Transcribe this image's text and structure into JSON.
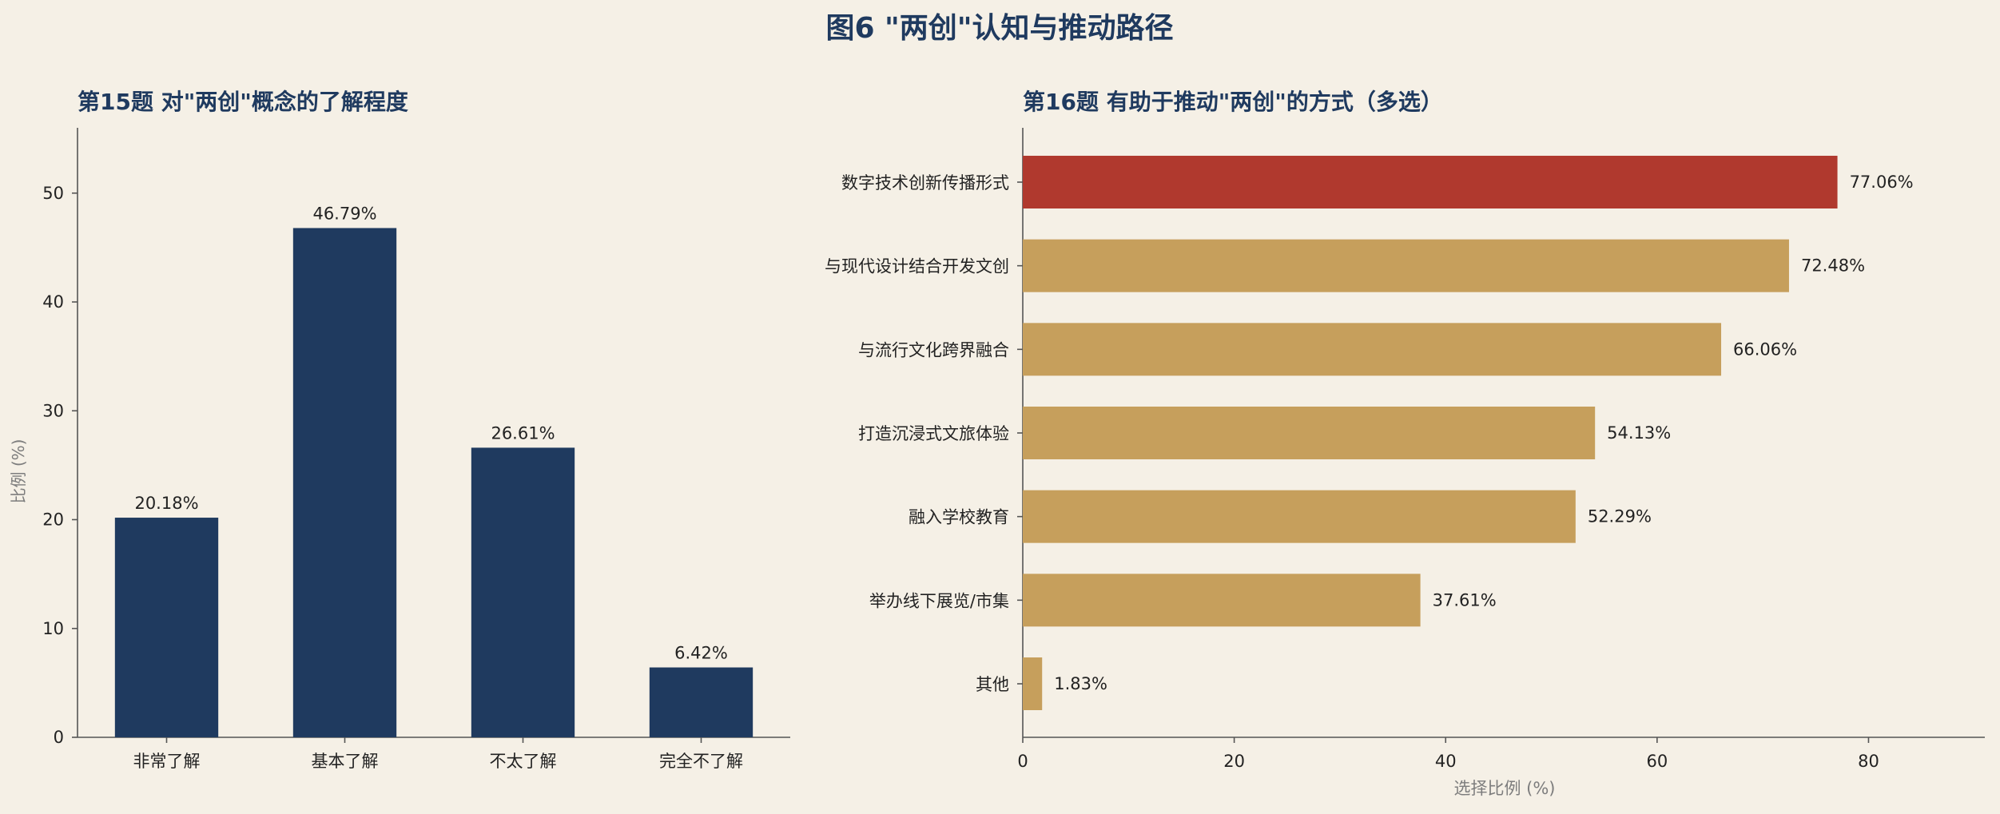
{
  "figure": {
    "title": "图6 \"两创\"认知与推动路径"
  },
  "chart_data": [
    {
      "type": "bar",
      "orientation": "vertical",
      "title": "第15题 对\"两创\"概念的了解程度",
      "xlabel": "",
      "ylabel": "比例 (%)",
      "categories": [
        "非常了解",
        "基本了解",
        "不太了解",
        "完全不了解"
      ],
      "values": [
        20.18,
        46.79,
        26.61,
        6.42
      ],
      "value_labels": [
        "20.18%",
        "46.79%",
        "26.61%",
        "6.42%"
      ],
      "ylim": [
        0,
        56
      ],
      "yticks": [
        0,
        10,
        20,
        30,
        40,
        50
      ],
      "colors": {
        "bar": "#1f3a5f"
      },
      "grid": false
    },
    {
      "type": "bar",
      "orientation": "horizontal",
      "title": "第16题 有助于推动\"两创\"的方式（多选）",
      "xlabel": "选择比例 (%)",
      "ylabel": "",
      "categories": [
        "数字技术创新传播形式",
        "与现代设计结合开发文创",
        "与流行文化跨界融合",
        "打造沉浸式文旅体验",
        "融入学校教育",
        "举办线下展览/市集",
        "其他"
      ],
      "values": [
        77.06,
        72.48,
        66.06,
        54.13,
        52.29,
        37.61,
        1.83
      ],
      "value_labels": [
        "77.06%",
        "72.48%",
        "66.06%",
        "54.13%",
        "52.29%",
        "37.61%",
        "1.83%"
      ],
      "xlim": [
        0,
        91
      ],
      "xticks": [
        0,
        20,
        40,
        60,
        80
      ],
      "colors": {
        "highlight": "#b0392e",
        "bar": "#c69f5c"
      },
      "grid": false
    }
  ]
}
